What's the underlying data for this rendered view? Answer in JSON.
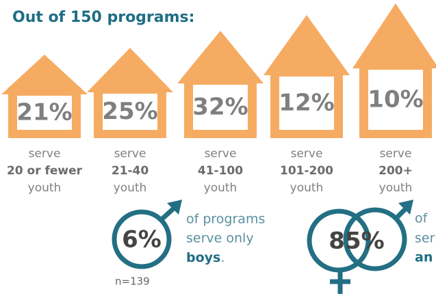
{
  "title": "Out of 150 programs:",
  "houses": [
    {
      "percent": "21%",
      "line1": "serve",
      "line2": "20 or fewer",
      "line3": "youth"
    },
    {
      "percent": "25%",
      "line1": "serve",
      "line2": "21-40",
      "line3": "youth"
    },
    {
      "percent": "32%",
      "line1": "serve",
      "line2": "41-100",
      "line3": "youth"
    },
    {
      "percent": "12%",
      "line1": "serve",
      "line2": "101-200",
      "line3": "youth"
    },
    {
      "percent": "10%",
      "line1": "serve",
      "line2": "200+",
      "line3": "youth"
    }
  ],
  "boys": {
    "percent": "6%",
    "line1": "of programs",
    "line2": "serve only",
    "emphasis": "boys",
    "end": ".",
    "note": "n=139"
  },
  "both": {
    "percent": "85%",
    "line1": "of",
    "line2": "ser",
    "emphasis": "an"
  }
}
